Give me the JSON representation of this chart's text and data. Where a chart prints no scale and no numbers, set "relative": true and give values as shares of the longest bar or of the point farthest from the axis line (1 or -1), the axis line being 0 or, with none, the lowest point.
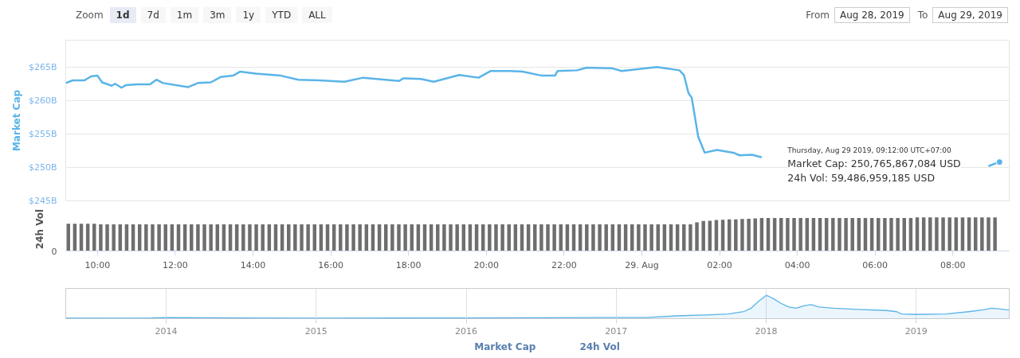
{
  "chart_data": [
    {
      "type": "line",
      "ylabel": "Market Cap",
      "xlim": [
        "2019-08-28T09:11",
        "2019-08-29T09:27"
      ],
      "ylim": [
        245,
        269
      ],
      "tick_labels": "y",
      "grid": "y",
      "legend": "bottom",
      "yticks": [
        {
          "value": 245,
          "label": "$245B"
        },
        {
          "value": 250,
          "label": "$250B"
        },
        {
          "value": 255,
          "label": "$255B"
        },
        {
          "value": 260,
          "label": "$260B"
        },
        {
          "value": 265,
          "label": "$265B"
        }
      ],
      "x": [
        "2019-08-28T09:11",
        "2019-08-28T09:22",
        "2019-08-28T09:40",
        "2019-08-28T09:50",
        "2019-08-28T10:00",
        "2019-08-28T10:07",
        "2019-08-28T10:22",
        "2019-08-28T10:27",
        "2019-08-28T10:37",
        "2019-08-28T10:44",
        "2019-08-28T11:01",
        "2019-08-28T11:21",
        "2019-08-28T11:31",
        "2019-08-28T11:41",
        "2019-08-28T12:20",
        "2019-08-28T12:35",
        "2019-08-28T12:55",
        "2019-08-28T13:10",
        "2019-08-28T13:29",
        "2019-08-28T13:40",
        "2019-08-28T14:04",
        "2019-08-28T14:43",
        "2019-08-28T15:10",
        "2019-08-28T15:42",
        "2019-08-28T16:21",
        "2019-08-28T16:50",
        "2019-08-28T17:45",
        "2019-08-28T17:52",
        "2019-08-28T18:19",
        "2019-08-28T18:39",
        "2019-08-28T19:18",
        "2019-08-28T19:48",
        "2019-08-28T20:07",
        "2019-08-28T20:37",
        "2019-08-28T20:56",
        "2019-08-28T21:26",
        "2019-08-28T21:46",
        "2019-08-28T21:50",
        "2019-08-28T22:20",
        "2019-08-28T22:35",
        "2019-08-28T23:14",
        "2019-08-28T23:29",
        "2019-08-29T00:23",
        "2019-08-29T00:58",
        "2019-08-29T01:05",
        "2019-08-29T01:12",
        "2019-08-29T01:17",
        "2019-08-29T01:27",
        "2019-08-29T01:37",
        "2019-08-29T01:56",
        "2019-08-29T02:21",
        "2019-08-29T02:31",
        "2019-08-29T02:50",
        "2019-08-29T03:05",
        "2019-08-29T05:30",
        "2019-08-29T08:55",
        "2019-08-29T09:12"
      ],
      "series": [
        {
          "name": "Market Cap",
          "color": "#5ab4e8",
          "values": [
            262.6,
            263.0,
            263.0,
            263.6,
            263.7,
            262.7,
            262.2,
            262.5,
            261.9,
            262.3,
            262.4,
            262.4,
            263.1,
            262.6,
            262.0,
            262.6,
            262.7,
            263.5,
            263.7,
            264.3,
            264.0,
            263.7,
            263.1,
            263.0,
            262.8,
            263.4,
            262.9,
            263.3,
            263.2,
            262.8,
            263.8,
            263.4,
            264.4,
            264.4,
            264.3,
            263.7,
            263.7,
            264.4,
            264.5,
            264.9,
            264.8,
            264.4,
            265.0,
            264.5,
            263.8,
            261.1,
            260.4,
            254.6,
            252.2,
            252.6,
            252.2,
            251.8,
            251.9,
            251.5,
            null,
            250.2,
            250.8
          ]
        }
      ],
      "annotations": [
        "Thursday, Aug 29 2019, 09:12:00 UTC+07:00",
        "Market Cap: 250,765,867,084 USD",
        "24h Vol: 59,486,959,185 USD",
        "Zoom",
        "1d",
        "7d",
        "1m",
        "3m",
        "1y",
        "YTD",
        "ALL",
        "From",
        "Aug 28, 2019",
        "To",
        "Aug 29, 2019"
      ]
    },
    {
      "type": "bar",
      "ylabel": "24h Vol",
      "relative": true,
      "xlim": [
        "2019-08-28T09:11",
        "2019-08-29T09:27"
      ],
      "annotations": [
        "0"
      ],
      "xticks": [
        {
          "value": "2019-08-28T10:00",
          "label": "10:00"
        },
        {
          "value": "2019-08-28T12:00",
          "label": "12:00"
        },
        {
          "value": "2019-08-28T14:00",
          "label": "14:00"
        },
        {
          "value": "2019-08-28T16:00",
          "label": "16:00"
        },
        {
          "value": "2019-08-28T18:00",
          "label": "18:00"
        },
        {
          "value": "2019-08-28T20:00",
          "label": "20:00"
        },
        {
          "value": "2019-08-28T22:00",
          "label": "22:00"
        },
        {
          "value": "2019-08-29T00:00",
          "label": "29. Aug"
        },
        {
          "value": "2019-08-29T02:00",
          "label": "02:00"
        },
        {
          "value": "2019-08-29T04:00",
          "label": "04:00"
        },
        {
          "value": "2019-08-29T06:00",
          "label": "06:00"
        },
        {
          "value": "2019-08-29T08:00",
          "label": "08:00"
        }
      ],
      "x": [
        "2019-08-28T09:15",
        "2019-08-28T09:25",
        "2019-08-28T09:35",
        "2019-08-28T09:45",
        "2019-08-28T09:55",
        "2019-08-28T10:05",
        "2019-08-28T10:15",
        "2019-08-28T10:25",
        "2019-08-28T10:35",
        "2019-08-28T10:45",
        "2019-08-28T10:55",
        "2019-08-28T11:05",
        "2019-08-28T11:15",
        "2019-08-28T11:25",
        "2019-08-28T11:35",
        "2019-08-28T11:45",
        "2019-08-28T11:55",
        "2019-08-28T12:05",
        "2019-08-28T12:15",
        "2019-08-28T12:25",
        "2019-08-28T12:35",
        "2019-08-28T12:45",
        "2019-08-28T12:55",
        "2019-08-28T13:05",
        "2019-08-28T13:15",
        "2019-08-28T13:25",
        "2019-08-28T13:35",
        "2019-08-28T13:45",
        "2019-08-28T13:55",
        "2019-08-28T14:05",
        "2019-08-28T14:15",
        "2019-08-28T14:25",
        "2019-08-28T14:35",
        "2019-08-28T14:45",
        "2019-08-28T14:55",
        "2019-08-28T15:05",
        "2019-08-28T15:15",
        "2019-08-28T15:25",
        "2019-08-28T15:35",
        "2019-08-28T15:45",
        "2019-08-28T15:55",
        "2019-08-28T16:05",
        "2019-08-28T16:15",
        "2019-08-28T16:25",
        "2019-08-28T16:35",
        "2019-08-28T16:45",
        "2019-08-28T16:55",
        "2019-08-28T17:05",
        "2019-08-28T17:15",
        "2019-08-28T17:25",
        "2019-08-28T17:35",
        "2019-08-28T17:45",
        "2019-08-28T17:55",
        "2019-08-28T18:05",
        "2019-08-28T18:15",
        "2019-08-28T18:25",
        "2019-08-28T18:35",
        "2019-08-28T18:45",
        "2019-08-28T18:55",
        "2019-08-28T19:05",
        "2019-08-28T19:15",
        "2019-08-28T19:25",
        "2019-08-28T19:35",
        "2019-08-28T19:45",
        "2019-08-28T19:55",
        "2019-08-28T20:05",
        "2019-08-28T20:15",
        "2019-08-28T20:25",
        "2019-08-28T20:35",
        "2019-08-28T20:45",
        "2019-08-28T20:55",
        "2019-08-28T21:05",
        "2019-08-28T21:15",
        "2019-08-28T21:25",
        "2019-08-28T21:35",
        "2019-08-28T21:45",
        "2019-08-28T21:55",
        "2019-08-28T22:05",
        "2019-08-28T22:15",
        "2019-08-28T22:25",
        "2019-08-28T22:35",
        "2019-08-28T22:45",
        "2019-08-28T22:55",
        "2019-08-28T23:05",
        "2019-08-28T23:15",
        "2019-08-28T23:25",
        "2019-08-28T23:35",
        "2019-08-28T23:45",
        "2019-08-28T23:55",
        "2019-08-29T00:05",
        "2019-08-29T00:15",
        "2019-08-29T00:25",
        "2019-08-29T00:35",
        "2019-08-29T00:45",
        "2019-08-29T00:55",
        "2019-08-29T01:05",
        "2019-08-29T01:15",
        "2019-08-29T01:25",
        "2019-08-29T01:35",
        "2019-08-29T01:45",
        "2019-08-29T01:55",
        "2019-08-29T02:05",
        "2019-08-29T02:15",
        "2019-08-29T02:25",
        "2019-08-29T02:35",
        "2019-08-29T02:45",
        "2019-08-29T02:55",
        "2019-08-29T03:05",
        "2019-08-29T03:15",
        "2019-08-29T03:25",
        "2019-08-29T03:35",
        "2019-08-29T03:45",
        "2019-08-29T03:55",
        "2019-08-29T04:05",
        "2019-08-29T04:15",
        "2019-08-29T04:25",
        "2019-08-29T04:35",
        "2019-08-29T04:45",
        "2019-08-29T04:55",
        "2019-08-29T05:05",
        "2019-08-29T05:15",
        "2019-08-29T05:25",
        "2019-08-29T05:35",
        "2019-08-29T05:45",
        "2019-08-29T05:55",
        "2019-08-29T06:05",
        "2019-08-29T06:15",
        "2019-08-29T06:25",
        "2019-08-29T06:35",
        "2019-08-29T06:45",
        "2019-08-29T06:55",
        "2019-08-29T07:05",
        "2019-08-29T07:15",
        "2019-08-29T07:25",
        "2019-08-29T07:35",
        "2019-08-29T07:45",
        "2019-08-29T07:55",
        "2019-08-29T08:05",
        "2019-08-29T08:15",
        "2019-08-29T08:25",
        "2019-08-29T08:35",
        "2019-08-29T08:45",
        "2019-08-29T08:55",
        "2019-08-29T09:05"
      ],
      "series": [
        {
          "name": "24h Vol",
          "color": "#6e6e6e",
          "values": [
            0.81,
            0.81,
            0.81,
            0.81,
            0.81,
            0.79,
            0.79,
            0.79,
            0.79,
            0.79,
            0.79,
            0.79,
            0.79,
            0.79,
            0.79,
            0.79,
            0.79,
            0.79,
            0.79,
            0.79,
            0.79,
            0.79,
            0.79,
            0.79,
            0.79,
            0.79,
            0.79,
            0.79,
            0.79,
            0.79,
            0.79,
            0.79,
            0.79,
            0.79,
            0.79,
            0.79,
            0.79,
            0.79,
            0.79,
            0.79,
            0.79,
            0.79,
            0.79,
            0.79,
            0.79,
            0.79,
            0.79,
            0.79,
            0.79,
            0.79,
            0.79,
            0.79,
            0.79,
            0.79,
            0.79,
            0.79,
            0.79,
            0.79,
            0.79,
            0.79,
            0.79,
            0.79,
            0.79,
            0.79,
            0.79,
            0.79,
            0.79,
            0.79,
            0.79,
            0.79,
            0.79,
            0.79,
            0.79,
            0.79,
            0.79,
            0.79,
            0.79,
            0.79,
            0.79,
            0.79,
            0.79,
            0.79,
            0.79,
            0.79,
            0.79,
            0.79,
            0.79,
            0.79,
            0.79,
            0.79,
            0.79,
            0.79,
            0.79,
            0.79,
            0.79,
            0.79,
            0.79,
            0.85,
            0.89,
            0.9,
            0.92,
            0.93,
            0.94,
            0.94,
            0.95,
            0.96,
            0.97,
            0.98,
            0.98,
            0.98,
            0.98,
            0.98,
            0.98,
            0.98,
            0.98,
            0.98,
            0.98,
            0.98,
            0.98,
            0.98,
            0.98,
            0.98,
            0.98,
            0.98,
            0.98,
            0.98,
            0.98,
            0.98,
            0.98,
            0.98,
            0.98,
            1.0,
            1.0,
            1.0,
            1.0,
            1.0,
            1.0,
            1.0,
            1.0,
            1.0,
            1.0,
            1.0,
            1.0,
            1.0
          ]
        }
      ]
    },
    {
      "type": "area",
      "relative": true,
      "grid": "x",
      "xlim": [
        2013.33,
        2019.62
      ],
      "xticks": [
        2014,
        2015,
        2016,
        2017,
        2018,
        2019
      ],
      "x": [
        2013.33,
        2013.9,
        2014.0,
        2014.5,
        2015.0,
        2016.0,
        2016.5,
        2017.0,
        2017.2,
        2017.4,
        2017.6,
        2017.75,
        2017.85,
        2017.9,
        2017.95,
        2017.98,
        2018.0,
        2018.02,
        2018.05,
        2018.1,
        2018.15,
        2018.2,
        2018.25,
        2018.3,
        2018.35,
        2018.45,
        2018.6,
        2018.8,
        2018.87,
        2018.9,
        2019.0,
        2019.2,
        2019.35,
        2019.45,
        2019.5,
        2019.55,
        2019.6,
        2019.62
      ],
      "series": [
        {
          "color": "#5ab4e8",
          "values": [
            0.02,
            0.03,
            0.05,
            0.03,
            0.02,
            0.03,
            0.04,
            0.05,
            0.05,
            0.12,
            0.16,
            0.2,
            0.3,
            0.45,
            0.75,
            0.9,
            1.0,
            0.95,
            0.85,
            0.65,
            0.5,
            0.45,
            0.55,
            0.6,
            0.5,
            0.45,
            0.4,
            0.35,
            0.3,
            0.2,
            0.18,
            0.2,
            0.3,
            0.38,
            0.45,
            0.42,
            0.38,
            0.37
          ]
        }
      ]
    }
  ]
}
